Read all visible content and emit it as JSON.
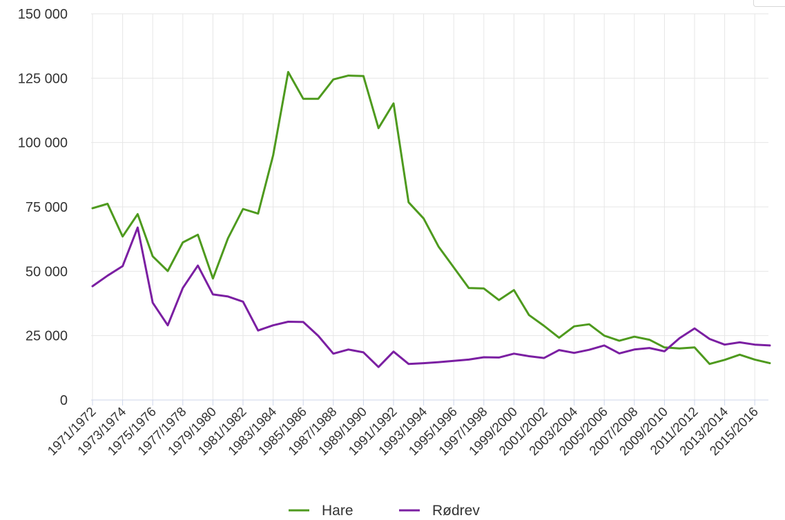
{
  "chart_data": {
    "type": "line",
    "title": "",
    "xlabel": "",
    "ylabel": "",
    "ylim": [
      0,
      150000
    ],
    "y_ticks": [
      0,
      25000,
      50000,
      75000,
      100000,
      125000,
      150000
    ],
    "y_tick_labels": [
      "0",
      "25 000",
      "50 000",
      "75 000",
      "100 000",
      "125 000",
      "150 000"
    ],
    "grid": true,
    "legend": "bottom",
    "categories": [
      "1971/1972",
      "1972/1973",
      "1973/1974",
      "1974/1975",
      "1975/1976",
      "1976/1977",
      "1977/1978",
      "1978/1979",
      "1979/1980",
      "1980/1981",
      "1981/1982",
      "1982/1983",
      "1983/1984",
      "1984/1985",
      "1985/1986",
      "1986/1987",
      "1987/1988",
      "1988/1989",
      "1989/1990",
      "1990/1991",
      "1991/1992",
      "1992/1993",
      "1993/1994",
      "1994/1995",
      "1995/1996",
      "1996/1997",
      "1997/1998",
      "1998/1999",
      "1999/2000",
      "2000/2001",
      "2001/2002",
      "2002/2003",
      "2003/2004",
      "2004/2005",
      "2005/2006",
      "2006/2007",
      "2007/2008",
      "2008/2009",
      "2009/2010",
      "2010/2011",
      "2011/2012",
      "2012/2013",
      "2013/2014",
      "2014/2015",
      "2015/2016",
      "2016/2017"
    ],
    "x_tick_labels": [
      "1971/1972",
      "1973/1974",
      "1975/1976",
      "1977/1978",
      "1979/1980",
      "1981/1982",
      "1983/1984",
      "1985/1986",
      "1987/1988",
      "1989/1990",
      "1991/1992",
      "1993/1994",
      "1995/1996",
      "1997/1998",
      "1999/2000",
      "2001/2002",
      "2003/2004",
      "2005/2006",
      "2007/2008",
      "2009/2010",
      "2011/2012",
      "2013/2014",
      "2015/2016"
    ],
    "series": [
      {
        "name": "Hare",
        "color": "#4e9a1e",
        "values": [
          74500,
          76200,
          63500,
          72200,
          55800,
          50100,
          61200,
          64200,
          47200,
          62800,
          74200,
          72400,
          95000,
          127400,
          117000,
          117000,
          124500,
          126000,
          125800,
          105600,
          115200,
          76800,
          70500,
          59500,
          51500,
          43500,
          43300,
          38800,
          42700,
          33000,
          28800,
          24200,
          28600,
          29400,
          25000,
          23000,
          24600,
          23400,
          20400,
          20000,
          20400,
          14000,
          15600,
          17600,
          15700,
          14300
        ]
      },
      {
        "name": "Rødrev",
        "color": "#7b1fa2",
        "values": [
          44200,
          48300,
          52000,
          67000,
          37800,
          29000,
          43500,
          52200,
          41000,
          40200,
          38200,
          27000,
          29000,
          30400,
          30300,
          24900,
          18000,
          19600,
          18500,
          12800,
          18800,
          14000,
          14300,
          14700,
          15200,
          15700,
          16600,
          16500,
          18000,
          17000,
          16300,
          19400,
          18300,
          19500,
          21200,
          18100,
          19600,
          20200,
          18900,
          24000,
          27800,
          23700,
          21500,
          22400,
          21500,
          21200
        ]
      }
    ]
  }
}
